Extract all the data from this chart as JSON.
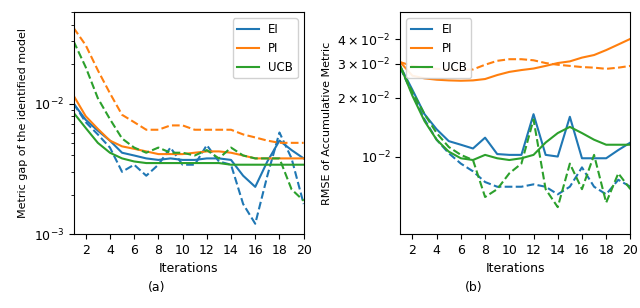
{
  "iterations": [
    1,
    2,
    3,
    4,
    5,
    6,
    7,
    8,
    9,
    10,
    11,
    12,
    13,
    14,
    15,
    16,
    17,
    18,
    19,
    20
  ],
  "colors": {
    "EI": "#1f77b4",
    "PI": "#ff7f0e",
    "UCB": "#2ca02c"
  },
  "left_ylabel": "Metric gap of the identified model",
  "right_ylabel": "RMSE of Accumulative Metric",
  "xlabel": "Iterations",
  "label_a": "(a)",
  "label_b": "(b)",
  "left": {
    "EI_solid": [
      0.01,
      0.0075,
      0.0062,
      0.0052,
      0.0042,
      0.004,
      0.0038,
      0.0037,
      0.0038,
      0.0037,
      0.0037,
      0.0038,
      0.0038,
      0.0037,
      0.0028,
      0.0023,
      0.0036,
      0.0052,
      0.0044,
      0.0038
    ],
    "EI_dashed": [
      0.01,
      0.0072,
      0.0058,
      0.0046,
      0.003,
      0.0034,
      0.0028,
      0.0034,
      0.0046,
      0.0034,
      0.0034,
      0.0048,
      0.0036,
      0.0034,
      0.0017,
      0.0012,
      0.0028,
      0.006,
      0.0038,
      0.0017
    ],
    "PI_solid": [
      0.0115,
      0.008,
      0.0064,
      0.0052,
      0.0047,
      0.0045,
      0.0043,
      0.0041,
      0.0041,
      0.0041,
      0.0042,
      0.0043,
      0.0043,
      0.0042,
      0.004,
      0.0038,
      0.0038,
      0.0038,
      0.0038,
      0.0038
    ],
    "PI_dashed": [
      0.038,
      0.028,
      0.018,
      0.012,
      0.0082,
      0.0072,
      0.0063,
      0.0063,
      0.0068,
      0.0068,
      0.0063,
      0.0063,
      0.0063,
      0.0063,
      0.0058,
      0.0055,
      0.0052,
      0.005,
      0.005,
      0.005
    ],
    "UCB_solid": [
      0.0085,
      0.0065,
      0.005,
      0.0042,
      0.0038,
      0.0036,
      0.0035,
      0.0035,
      0.0035,
      0.0035,
      0.0035,
      0.0035,
      0.0035,
      0.0034,
      0.0034,
      0.0034,
      0.0034,
      0.0034,
      0.0034,
      0.0034
    ],
    "UCB_dashed": [
      0.03,
      0.019,
      0.011,
      0.0076,
      0.0054,
      0.0046,
      0.0042,
      0.0046,
      0.0042,
      0.0042,
      0.004,
      0.0044,
      0.0038,
      0.0046,
      0.004,
      0.0038,
      0.0038,
      0.0038,
      0.0022,
      0.0018
    ]
  },
  "right": {
    "EI_solid": [
      0.029,
      0.022,
      0.0165,
      0.0138,
      0.012,
      0.0115,
      0.011,
      0.0125,
      0.0103,
      0.0102,
      0.0102,
      0.0165,
      0.0102,
      0.01,
      0.016,
      0.0098,
      0.0098,
      0.0098,
      0.0108,
      0.0118
    ],
    "EI_dashed": [
      0.0285,
      0.021,
      0.0155,
      0.0122,
      0.0104,
      0.0092,
      0.0084,
      0.0074,
      0.007,
      0.007,
      0.007,
      0.0072,
      0.007,
      0.0064,
      0.007,
      0.0088,
      0.007,
      0.0064,
      0.0076,
      0.007
    ],
    "PI_solid": [
      0.0305,
      0.026,
      0.0252,
      0.0248,
      0.0246,
      0.0245,
      0.0246,
      0.025,
      0.0262,
      0.0272,
      0.0278,
      0.0283,
      0.0292,
      0.0302,
      0.0308,
      0.0322,
      0.0332,
      0.0352,
      0.0376,
      0.0402
    ],
    "PI_dashed": [
      0.0305,
      0.0292,
      0.0286,
      0.0282,
      0.028,
      0.0278,
      0.028,
      0.0296,
      0.031,
      0.0316,
      0.0316,
      0.0312,
      0.0302,
      0.0296,
      0.0292,
      0.0288,
      0.0286,
      0.0282,
      0.0286,
      0.0292
    ],
    "UCB_solid": [
      0.0292,
      0.0205,
      0.0152,
      0.0122,
      0.0106,
      0.0098,
      0.0096,
      0.0102,
      0.0098,
      0.0096,
      0.0098,
      0.0102,
      0.0118,
      0.0132,
      0.0142,
      0.0132,
      0.0122,
      0.0115,
      0.0115,
      0.0115
    ],
    "UCB_dashed": [
      0.0288,
      0.0215,
      0.0165,
      0.0132,
      0.0112,
      0.0102,
      0.0096,
      0.0062,
      0.0068,
      0.0082,
      0.0092,
      0.0155,
      0.0068,
      0.0055,
      0.0092,
      0.0068,
      0.0102,
      0.0058,
      0.0082,
      0.0068
    ]
  },
  "left_ylim": [
    0.001,
    0.05
  ],
  "right_ylim": [
    0.004,
    0.055
  ],
  "right_yticks": [
    0.01,
    0.02,
    0.03,
    0.04
  ]
}
